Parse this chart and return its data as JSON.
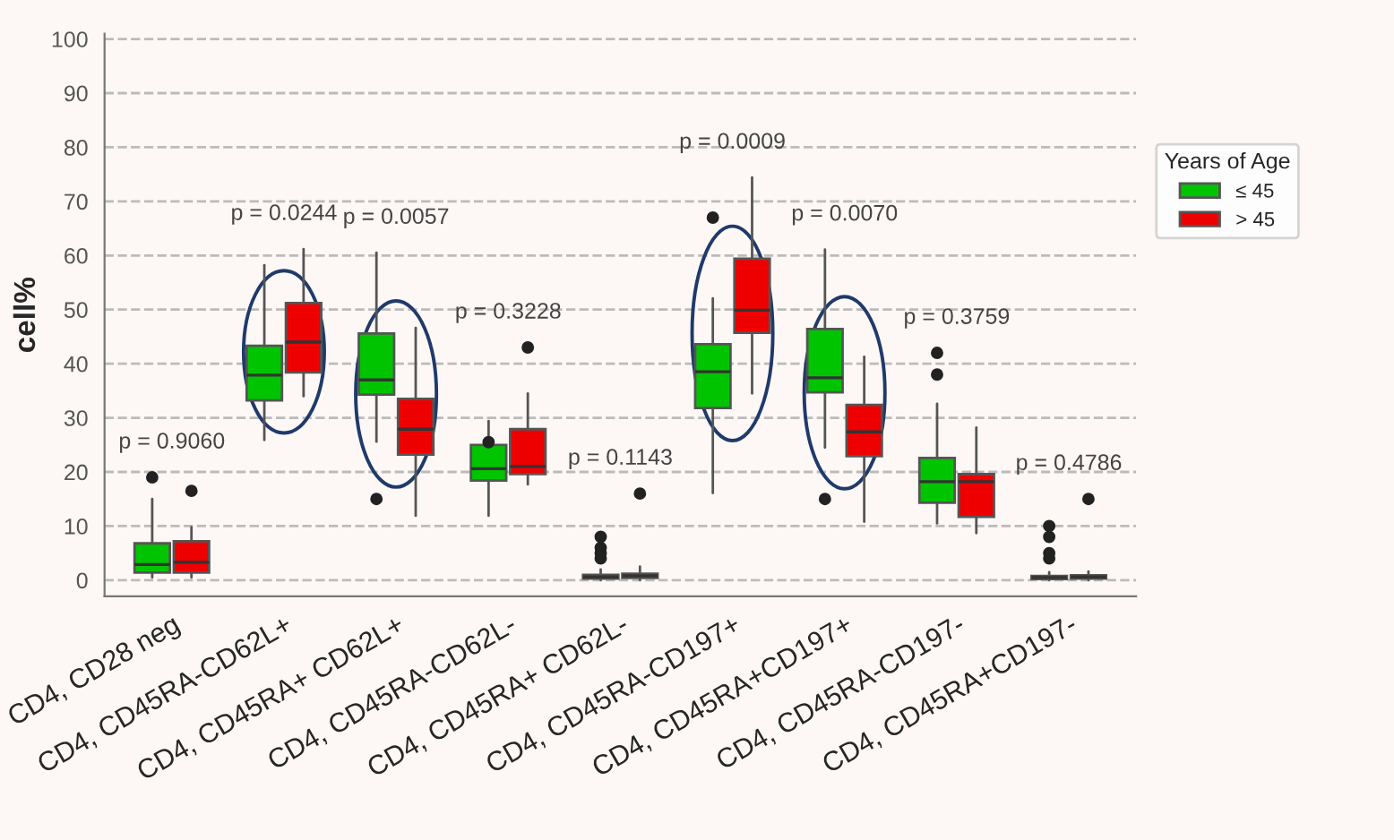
{
  "chart_data": {
    "type": "box",
    "ylabel": "cell%",
    "legend_title": "Years of Age",
    "categories": [
      "CD4, CD28 neg",
      "CD4, CD45RA-CD62L+",
      "CD4, CD45RA+ CD62L+",
      "CD4, CD45RA-CD62L-",
      "CD4, CD45RA+ CD62L-",
      "CD4, CD45RA-CD197+",
      "CD4, CD45RA+CD197+",
      "CD4, CD45RA-CD197-",
      "CD4, CD45RA+CD197-"
    ],
    "series": [
      {
        "name": "≤ 45",
        "color": "#00c400",
        "boxes": [
          {
            "low": 0.5,
            "q1": 1.4,
            "median": 2.9,
            "q3": 6.8,
            "high": 15,
            "outliers": [
              19
            ]
          },
          {
            "low": 25.9,
            "q1": 33.2,
            "median": 37.9,
            "q3": 43.3,
            "high": 58.2
          },
          {
            "low": 25.6,
            "q1": 34.3,
            "median": 37,
            "q3": 45.6,
            "high": 60.5,
            "outliers": [
              15
            ]
          },
          {
            "low": 11.9,
            "q1": 18.4,
            "median": 20.6,
            "q3": 25,
            "high": 29.4,
            "outliers": [
              25.5
            ]
          },
          {
            "low": 0,
            "q1": 0.3,
            "median": 0.6,
            "q3": 1,
            "high": 2,
            "outliers": [
              4,
              5,
              6,
              8
            ]
          },
          {
            "low": 16.1,
            "q1": 31.8,
            "median": 38.5,
            "q3": 43.6,
            "high": 52.1,
            "outliers": [
              67
            ]
          },
          {
            "low": 24.5,
            "q1": 34.7,
            "median": 37.4,
            "q3": 46.4,
            "high": 61.1,
            "outliers": [
              15
            ]
          },
          {
            "low": 10.5,
            "q1": 14.3,
            "median": 18.2,
            "q3": 22.6,
            "high": 32.6,
            "outliers": [
              38,
              42
            ]
          },
          {
            "low": 0,
            "q1": 0.2,
            "median": 0.5,
            "q3": 0.8,
            "high": 1.5,
            "outliers": [
              4,
              5,
              8,
              10
            ]
          }
        ]
      },
      {
        "name": "> 45",
        "color": "#ee0000",
        "boxes": [
          {
            "low": 0.5,
            "q1": 1.4,
            "median": 3.3,
            "q3": 7.2,
            "high": 9.8,
            "outliers": [
              16.5
            ]
          },
          {
            "low": 34,
            "q1": 38.4,
            "median": 44,
            "q3": 51.2,
            "high": 61.2
          },
          {
            "low": 11.9,
            "q1": 23.2,
            "median": 27.9,
            "q3": 33.5,
            "high": 46.6
          },
          {
            "low": 17.7,
            "q1": 19.6,
            "median": 21,
            "q3": 27.9,
            "high": 34.5,
            "outliers": [
              43
            ]
          },
          {
            "low": 0,
            "q1": 0.4,
            "median": 0.8,
            "q3": 1.2,
            "high": 2.5,
            "outliers": [
              16
            ]
          },
          {
            "low": 34.5,
            "q1": 45.7,
            "median": 49.9,
            "q3": 59.4,
            "high": 74.4
          },
          {
            "low": 10.8,
            "q1": 22.9,
            "median": 27.4,
            "q3": 32.4,
            "high": 41.3
          },
          {
            "low": 8.7,
            "q1": 11.7,
            "median": 18.2,
            "q3": 19.6,
            "high": 28.2
          },
          {
            "low": 0,
            "q1": 0.3,
            "median": 0.6,
            "q3": 0.9,
            "high": 1.6,
            "outliers": [
              15
            ]
          }
        ]
      }
    ],
    "annotations": [
      "p = 0.9060",
      "p = 0.0244",
      "p = 0.0057",
      "p = 0.3228",
      "p = 0.1143",
      "p = 0.0009",
      "p = 0.0070",
      "p = 0.3759",
      "p = 0.4786"
    ],
    "ylim": [
      -3,
      101
    ],
    "yticks": [
      0,
      10,
      20,
      30,
      40,
      50,
      60,
      70,
      80,
      90,
      100
    ],
    "grid": "y",
    "legend": "right"
  }
}
